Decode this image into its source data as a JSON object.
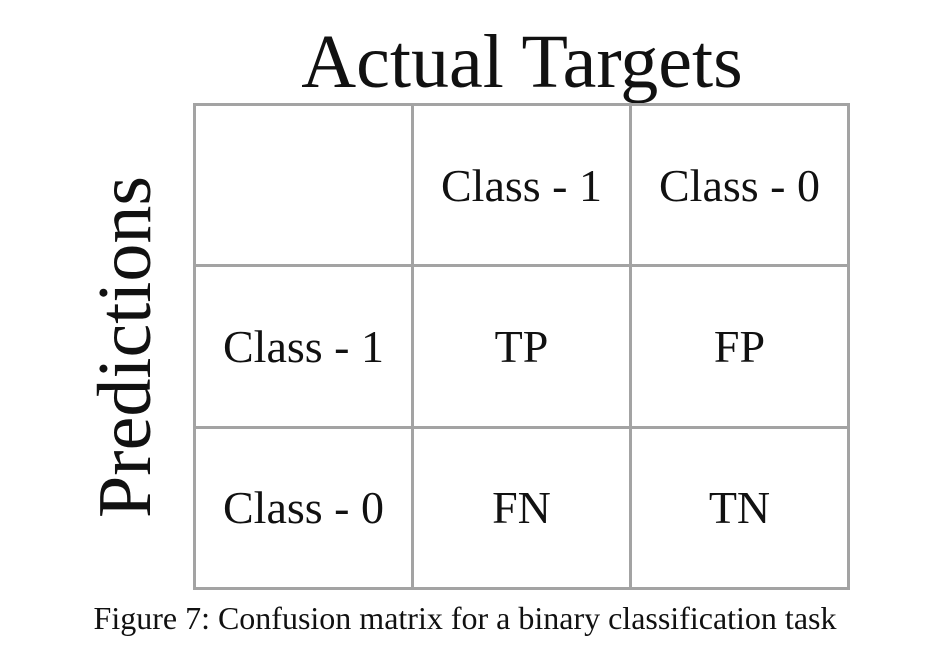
{
  "column_header_title": "Actual Targets",
  "row_header_title": "Predictions",
  "columns": [
    "Class - 1",
    "Class - 0"
  ],
  "rows": [
    {
      "label": "Class - 1",
      "cells": [
        "TP",
        "FP"
      ]
    },
    {
      "label": "Class - 0",
      "cells": [
        "FN",
        "TN"
      ]
    }
  ],
  "caption": "Figure 7: Confusion matrix for a binary classification task"
}
